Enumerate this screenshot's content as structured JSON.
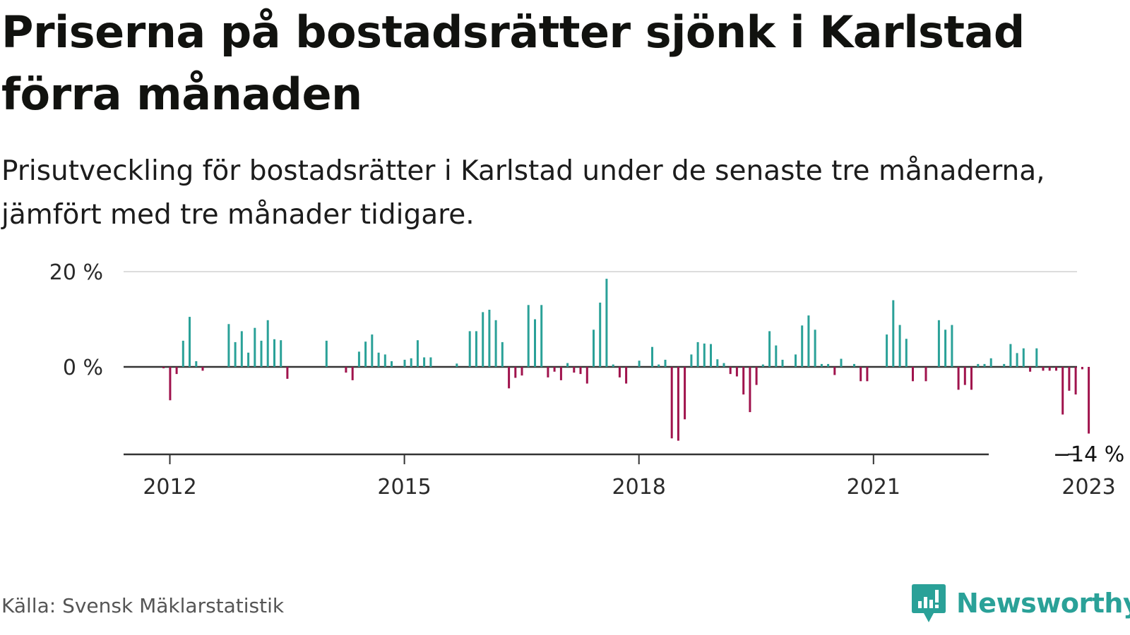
{
  "title": "Priserna på bostadsrätter sjönk i Karlstad förra månaden",
  "subtitle": "Prisutveckling för bostadsrätter i Karlstad under de senaste tre månaderna, jämfört med tre månader tidigare.",
  "source": "Källa: Svensk Mäklarstatistik",
  "brand": "Newsworthy",
  "colors": {
    "positive": "#2aa198",
    "negative": "#a0134d",
    "brand": "#2aa198"
  },
  "chart_data": {
    "type": "bar",
    "ylim": [
      -20,
      20
    ],
    "yticks": [
      {
        "value": 20,
        "label": "20 %"
      },
      {
        "value": 0,
        "label": "0 %"
      }
    ],
    "xticks": [
      {
        "year": 2012,
        "label": "2012"
      },
      {
        "year": 2015,
        "label": "2015"
      },
      {
        "year": 2018,
        "label": "2018"
      },
      {
        "year": 2021,
        "label": "2021"
      },
      {
        "year": 2023,
        "label": "2023"
      }
    ],
    "start_year": 2011.92,
    "annotation": {
      "label": "−14 %",
      "value": -14
    },
    "values": [
      -0.3,
      -7,
      -1.5,
      5.5,
      10.5,
      1.2,
      -0.8,
      0,
      0,
      0,
      9,
      5.2,
      7.5,
      3,
      8.2,
      5.5,
      9.8,
      5.8,
      5.6,
      -2.5,
      0,
      0,
      0,
      0,
      0,
      5.5,
      0,
      0,
      -1.2,
      -2.8,
      3.2,
      5.3,
      6.8,
      3,
      2.6,
      1.2,
      0,
      1.5,
      1.8,
      5.6,
      2,
      2,
      0,
      0,
      0,
      0.7,
      0,
      7.5,
      7.5,
      11.5,
      12,
      9.8,
      5.2,
      -4.5,
      -2.3,
      -1.8,
      13,
      10,
      13,
      -2.2,
      -1,
      -2.8,
      0.8,
      -1.2,
      -1.5,
      -3.5,
      7.8,
      13.5,
      18.5,
      0.5,
      -2.2,
      -3.5,
      0,
      1.3,
      0,
      4.2,
      0.5,
      1.5,
      -15,
      -15.5,
      -11,
      2.6,
      5.2,
      4.9,
      4.8,
      1.6,
      0.8,
      -1.5,
      -2,
      -5.8,
      -9.5,
      -3.8,
      0.5,
      7.5,
      4.5,
      1.5,
      0,
      2.6,
      8.7,
      10.8,
      7.8,
      0.6,
      0.6,
      -1.7,
      1.7,
      0,
      0.6,
      -3,
      -3,
      0,
      0,
      6.8,
      14,
      8.8,
      5.9,
      -3,
      0,
      -3,
      0,
      9.8,
      7.8,
      8.8,
      -4.8,
      -3.8,
      -4.8,
      0.6,
      0.6,
      1.8,
      0,
      0.6,
      4.8,
      2.9,
      3.9,
      -1,
      3.9,
      -0.8,
      -0.8,
      -0.8,
      -10,
      -5,
      -5.8,
      -0.5,
      -14
    ]
  }
}
